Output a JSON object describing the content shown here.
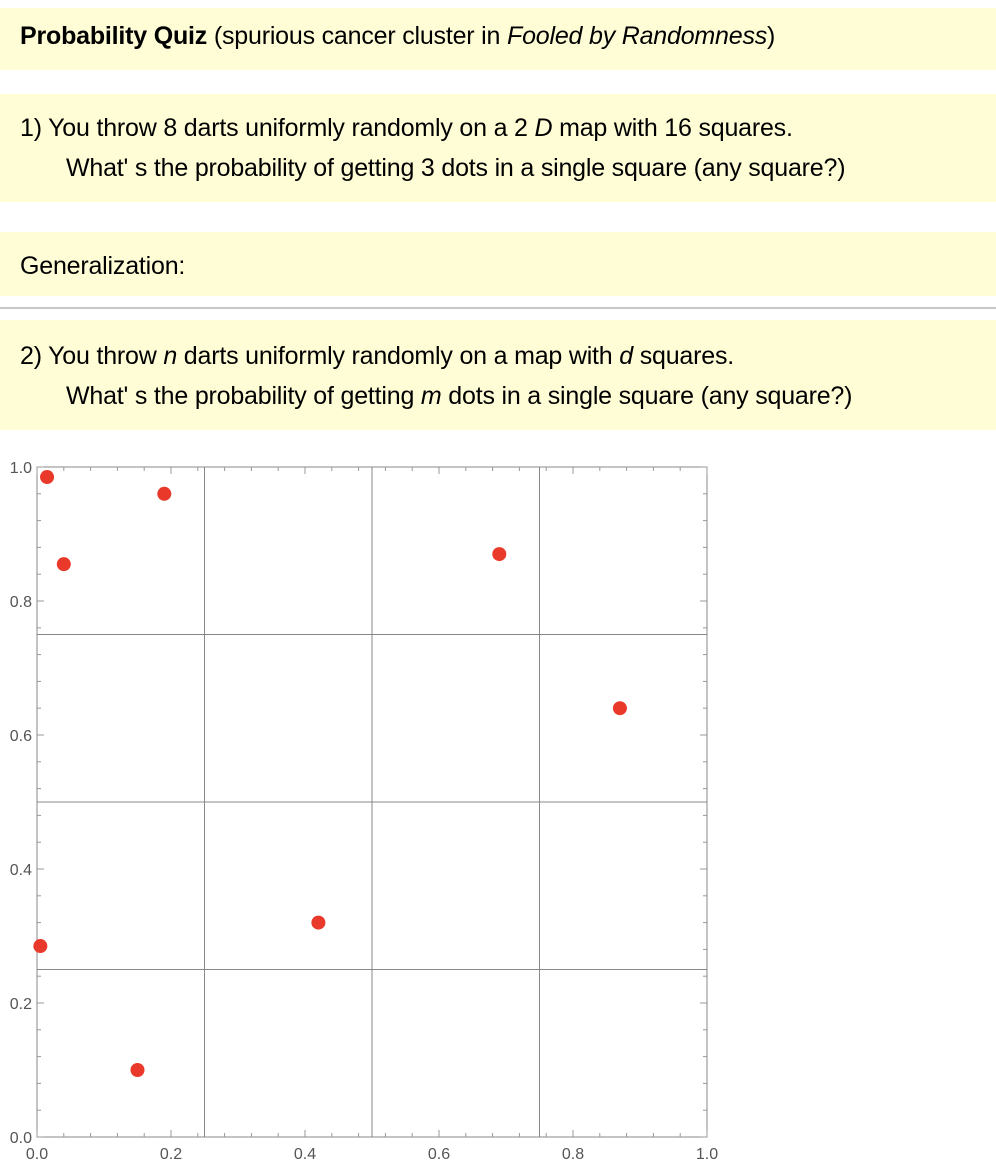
{
  "title": {
    "bold": "Probability Quiz",
    "pre": " (spurious cancer cluster in ",
    "italic": "Fooled by Randomness",
    "post": ")"
  },
  "q1": {
    "line1_a": "1) You throw 8 darts uniformly randomly on a  2 ",
    "line1_it": "D",
    "line1_b": " map with 16 squares.",
    "line2": "What' s the probability of getting 3 dots in a single square (any square?)"
  },
  "generalization": "Generalization:",
  "q2": {
    "line1_a": "2) You throw ",
    "line1_n": "n",
    "line1_b": " darts uniformly randomly on a map with ",
    "line1_d": "d",
    "line1_c": " squares.",
    "line2_a": "What' s the probability of getting ",
    "line2_m": "m",
    "line2_b": " dots in a single square (any square?)"
  },
  "chart_data": {
    "type": "scatter",
    "title": "",
    "xlabel": "",
    "ylabel": "",
    "xlim": [
      0,
      1
    ],
    "ylim": [
      0,
      1
    ],
    "xticks": [
      "0.0",
      "0.2",
      "0.4",
      "0.6",
      "0.8",
      "1.0"
    ],
    "yticks": [
      "0.0",
      "0.2",
      "0.4",
      "0.6",
      "0.8",
      "1.0"
    ],
    "grid_lines": [
      0.25,
      0.5,
      0.75
    ],
    "marker_color": "#e8392b",
    "points": [
      {
        "x": 0.015,
        "y": 0.985
      },
      {
        "x": 0.19,
        "y": 0.96
      },
      {
        "x": 0.04,
        "y": 0.855
      },
      {
        "x": 0.69,
        "y": 0.87
      },
      {
        "x": 0.87,
        "y": 0.64
      },
      {
        "x": 0.005,
        "y": 0.285
      },
      {
        "x": 0.42,
        "y": 0.32
      },
      {
        "x": 0.15,
        "y": 0.1
      }
    ]
  }
}
